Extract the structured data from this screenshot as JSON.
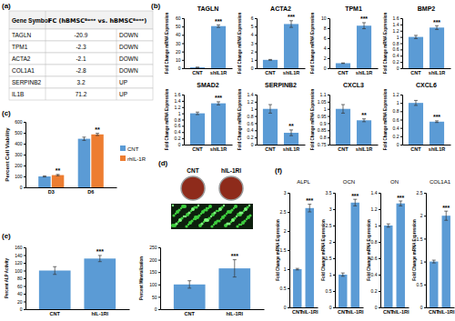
{
  "panel_labels": [
    "(a)",
    "(b)",
    "(c)",
    "(d)",
    "(e)",
    "(f)"
  ],
  "table": {
    "header": [
      "Gene Symbol",
      "FC (hBMSCᴮᵒⁿᵉ vs. hBMSCᴮᵒⁿᵉ)"
    ],
    "rows": [
      [
        "TAGLN",
        -20.9,
        "DOWN"
      ],
      [
        "TPM1",
        -2.3,
        "DOWN"
      ],
      [
        "ACTA2",
        -2.1,
        "DOWN"
      ],
      [
        "COL1A1",
        -2.8,
        "DOWN"
      ],
      [
        "SERPINB2",
        3.2,
        "UP"
      ],
      [
        "IL1B",
        71.2,
        "UP"
      ]
    ]
  },
  "images": {
    "labels": [
      "CNT",
      "hIL-1RI"
    ]
  },
  "chart_data": [
    {
      "type": "bar",
      "title": "TAGLN",
      "y_label": "Fold Change mRNA Expression",
      "categories": [
        "CNT",
        "shIL1R"
      ],
      "values": [
        1,
        50.5
      ],
      "errors": [
        0.1,
        1.5
      ],
      "color": "#5b9bd5",
      "ylim": [
        0,
        60
      ],
      "yticks": [
        0,
        10,
        20,
        30,
        40,
        50,
        60
      ],
      "annotation": "***"
    },
    {
      "type": "bar",
      "title": "ACTA2",
      "y_label": "Fold Change mRNA Expression",
      "categories": [
        "CNT",
        "shIL1R"
      ],
      "values": [
        1,
        5.3
      ],
      "errors": [
        0.05,
        0.4
      ],
      "color": "#5b9bd5",
      "ylim": [
        0,
        6
      ],
      "yticks": [
        0,
        1,
        2,
        3,
        4,
        5,
        6
      ],
      "annotation": "***"
    },
    {
      "type": "bar",
      "title": "TPM1",
      "y_label": "Fold Change mRNA Expression",
      "categories": [
        "CNT",
        "shIL1R"
      ],
      "values": [
        1,
        8.5
      ],
      "errors": [
        0.05,
        0.6
      ],
      "color": "#5b9bd5",
      "ylim": [
        0,
        10
      ],
      "yticks": [
        0,
        2,
        4,
        6,
        8,
        10
      ],
      "annotation": "***"
    },
    {
      "type": "bar",
      "title": "BMP2",
      "y_label": "Fold Change mRNA Expression",
      "categories": [
        "CNT",
        "shIL1R"
      ],
      "values": [
        1,
        1.3
      ],
      "errors": [
        0.05,
        0.06
      ],
      "color": "#5b9bd5",
      "ylim": [
        0,
        1.6
      ],
      "yticks": [
        0,
        0.2,
        0.4,
        0.6,
        0.8,
        1,
        1.2,
        1.4,
        1.6
      ],
      "annotation": "***"
    },
    {
      "type": "bar",
      "title": "SMAD2",
      "y_label": "Fold Change mRNA Expression",
      "categories": [
        "CNT",
        "shIL1R"
      ],
      "values": [
        1,
        1.32
      ],
      "errors": [
        0.04,
        0.05
      ],
      "color": "#5b9bd5",
      "ylim": [
        0,
        1.6
      ],
      "yticks": [
        0,
        0.2,
        0.4,
        0.6,
        0.8,
        1,
        1.2,
        1.4,
        1.6
      ],
      "annotation": "***"
    },
    {
      "type": "bar",
      "title": "SERPINB2",
      "y_label": "Fold Change mRNA Expression",
      "categories": [
        "CNT",
        "shIL1R"
      ],
      "values": [
        1,
        0.33
      ],
      "errors": [
        0.12,
        0.08
      ],
      "color": "#5b9bd5",
      "ylim": [
        0,
        1.4
      ],
      "yticks": [
        0,
        0.2,
        0.4,
        0.6,
        0.8,
        1,
        1.2,
        1.4
      ],
      "annotation": "**"
    },
    {
      "type": "bar",
      "title": "CXCL3",
      "y_label": "Fold Change mRNA Expression",
      "categories": [
        "CNT",
        "shIL1R"
      ],
      "values": [
        1,
        0.92
      ],
      "errors": [
        0.03,
        0.01
      ],
      "color": "#5b9bd5",
      "ylim": [
        0.75,
        1.1
      ],
      "yticks": [
        0.75,
        0.8,
        0.85,
        0.9,
        0.95,
        1,
        1.05,
        1.1
      ],
      "annotation": "**"
    },
    {
      "type": "bar",
      "title": "CXCL6",
      "y_label": "Fold Change mRNA Expression",
      "categories": [
        "CNT",
        "shIL1R"
      ],
      "values": [
        1,
        0.55
      ],
      "errors": [
        0.06,
        0.02
      ],
      "color": "#5b9bd5",
      "ylim": [
        0,
        1.2
      ],
      "yticks": [
        0,
        0.2,
        0.4,
        0.6,
        0.8,
        1,
        1.2
      ],
      "annotation": "***"
    },
    {
      "type": "bar",
      "y_label": "Percent Cell Viability",
      "categories": [
        "D3",
        "D6"
      ],
      "series": [
        {
          "name": "CNT",
          "color": "#5b9bd5",
          "values": [
            100,
            445
          ],
          "errors": [
            5,
            15
          ]
        },
        {
          "name": "rhIL-1R",
          "color": "#ed7d31",
          "values": [
            112,
            485
          ],
          "errors": [
            6,
            10
          ]
        }
      ],
      "ylim": [
        0,
        600
      ],
      "yticks": [
        0,
        100,
        200,
        300,
        400,
        500,
        600
      ],
      "annotations": [
        "**",
        "**"
      ],
      "legend": "right"
    },
    {
      "type": "bar",
      "y_label": "Percent ALP Activity",
      "categories": [
        "CNT",
        "hIL-1RI"
      ],
      "values": [
        100,
        131
      ],
      "errors": [
        10,
        8
      ],
      "color": "#5b9bd5",
      "ylim": [
        0,
        160
      ],
      "yticks": [
        0,
        20,
        40,
        60,
        80,
        100,
        120,
        140,
        160
      ],
      "annotation": "***"
    },
    {
      "type": "bar",
      "y_label": "Percent Mineralization",
      "categories": [
        "CNT",
        "hIL-1RI"
      ],
      "values": [
        100,
        165
      ],
      "errors": [
        15,
        35
      ],
      "color": "#5b9bd5",
      "ylim": [
        0,
        250
      ],
      "yticks": [
        0,
        50,
        100,
        150,
        200,
        250
      ],
      "annotation": "***"
    },
    {
      "type": "bar",
      "title": "ALPL",
      "y_label": "Fold Change mRNA Expression",
      "categories": [
        "CNT",
        "hIL-1RI"
      ],
      "values": [
        1,
        2.6
      ],
      "errors": [
        0.02,
        0.1
      ],
      "color": "#5b9bd5",
      "ylim": [
        0,
        3
      ],
      "yticks": [
        0,
        0.5,
        1,
        1.5,
        2,
        2.5,
        3
      ],
      "annotation": "***"
    },
    {
      "type": "bar",
      "title": "OCN",
      "y_label": "Fold Change mRNA Expression",
      "categories": [
        "CNT",
        "hIL-1RI"
      ],
      "values": [
        1,
        3.2
      ],
      "errors": [
        0.05,
        0.1
      ],
      "color": "#5b9bd5",
      "ylim": [
        0,
        3.5
      ],
      "yticks": [
        0,
        0.5,
        1,
        1.5,
        2,
        2.5,
        3,
        3.5
      ],
      "annotation": "***"
    },
    {
      "type": "bar",
      "title": "ON",
      "y_label": "Fold Change mRNA Expression",
      "categories": [
        "CNT",
        "hIL-1RI"
      ],
      "values": [
        1,
        1.27
      ],
      "errors": [
        0.02,
        0.03
      ],
      "color": "#5b9bd5",
      "ylim": [
        0,
        1.4
      ],
      "yticks": [
        0,
        0.2,
        0.4,
        0.6,
        0.8,
        1,
        1.2,
        1.4
      ],
      "annotation": "***"
    },
    {
      "type": "bar",
      "title": "COL1A1",
      "y_label": "Fold Change mRNA Expression",
      "categories": [
        "CNT",
        "hIL-1RI"
      ],
      "values": [
        1,
        2.0
      ],
      "errors": [
        0.03,
        0.1
      ],
      "color": "#5b9bd5",
      "ylim": [
        0,
        2.5
      ],
      "yticks": [
        0,
        0.5,
        1,
        1.5,
        2,
        2.5
      ],
      "annotation": "***"
    }
  ]
}
